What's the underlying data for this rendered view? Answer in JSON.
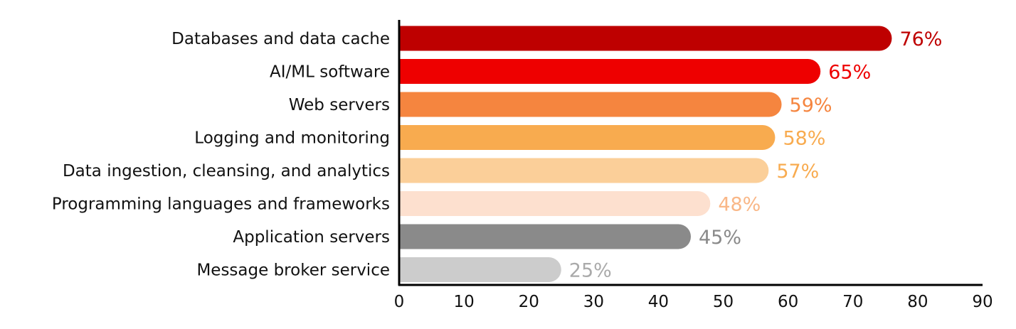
{
  "chart_data": {
    "type": "bar",
    "orientation": "horizontal",
    "title": "",
    "xlabel": "",
    "ylabel": "",
    "categories": [
      "Databases and data cache",
      "AI/ML software",
      "Web servers",
      "Logging and monitoring",
      "Data ingestion, cleansing, and analytics",
      "Programming languages and frameworks",
      "Application servers",
      "Message broker service"
    ],
    "values": [
      76,
      65,
      59,
      58,
      57,
      48,
      45,
      25
    ],
    "value_labels": [
      "76%",
      "65%",
      "59%",
      "58%",
      "57%",
      "48%",
      "45%",
      "25%"
    ],
    "bar_colors": [
      "#be0000",
      "#ee0000",
      "#f5853f",
      "#f8ab4f",
      "#fbcf99",
      "#fde0cf",
      "#8a8a8a",
      "#cccccc"
    ],
    "label_colors": [
      "#be0000",
      "#ee0000",
      "#f5853f",
      "#f8ab4f",
      "#f8ab4f",
      "#f9b787",
      "#8a8a8a",
      "#aaaaaa"
    ],
    "xlim": [
      0,
      90
    ],
    "xticks": [
      0,
      10,
      20,
      30,
      40,
      50,
      60,
      70,
      80,
      90
    ],
    "grid": false,
    "legend": "none"
  }
}
